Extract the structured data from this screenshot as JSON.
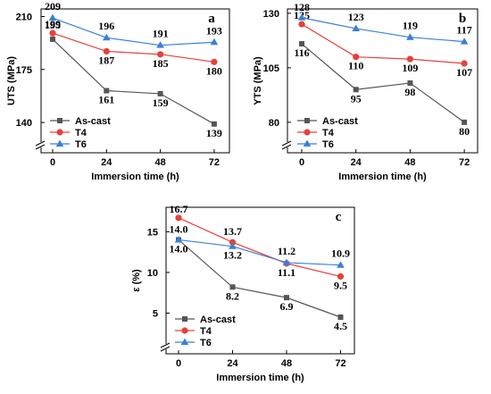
{
  "chart_data": [
    {
      "type": "line",
      "panel": "a",
      "x": [
        0,
        24,
        48,
        72
      ],
      "xticks": [
        "0",
        "24",
        "48",
        "72"
      ],
      "xlabel": "Immersion time (h)",
      "ylabel": "UTS (MPa)",
      "ylim": [
        120,
        215
      ],
      "yticks": [
        140,
        175,
        210
      ],
      "axis_break": true,
      "legend": "bottom-left",
      "series": [
        {
          "name": "As-cast",
          "values": [
            195,
            161,
            159,
            139
          ],
          "labels": [
            "195",
            "161",
            "159",
            "139"
          ],
          "color": "#555555",
          "marker": "square"
        },
        {
          "name": "T4",
          "values": [
            199,
            187,
            185,
            180
          ],
          "labels": [
            "199",
            "187",
            "185",
            "180"
          ],
          "color": "#e8403a",
          "marker": "circle"
        },
        {
          "name": "T6",
          "values": [
            209,
            196,
            191,
            193
          ],
          "labels": [
            "209",
            "196",
            "191",
            "193"
          ],
          "color": "#3a7fd9",
          "marker": "triangle"
        }
      ]
    },
    {
      "type": "line",
      "panel": "b",
      "x": [
        0,
        24,
        48,
        72
      ],
      "xticks": [
        "0",
        "24",
        "48",
        "72"
      ],
      "xlabel": "Immersion time (h)",
      "ylabel": "YTS (MPa)",
      "ylim": [
        66,
        132
      ],
      "yticks": [
        80,
        105,
        130
      ],
      "axis_break": true,
      "legend": "bottom-left",
      "series": [
        {
          "name": "As-cast",
          "values": [
            116,
            95,
            98,
            80
          ],
          "labels": [
            "116",
            "95",
            "98",
            "80"
          ],
          "color": "#555555",
          "marker": "square"
        },
        {
          "name": "T4",
          "values": [
            125,
            110,
            109,
            107
          ],
          "labels": [
            "125",
            "110",
            "109",
            "107"
          ],
          "color": "#e8403a",
          "marker": "circle"
        },
        {
          "name": "T6",
          "values": [
            128,
            123,
            119,
            117
          ],
          "labels": [
            "128",
            "123",
            "119",
            "117"
          ],
          "color": "#3a7fd9",
          "marker": "triangle"
        }
      ]
    },
    {
      "type": "line",
      "panel": "c",
      "x": [
        0,
        24,
        48,
        72
      ],
      "xticks": [
        "0",
        "24",
        "48",
        "72"
      ],
      "xlabel": "Immersion time (h)",
      "ylabel": "ε (%)",
      "ylim": [
        0,
        18
      ],
      "yticks": [
        5,
        10,
        15
      ],
      "axis_break": true,
      "legend": "bottom-left",
      "series": [
        {
          "name": "As-cast",
          "values": [
            14.0,
            8.2,
            6.9,
            4.5
          ],
          "labels": [
            "14.0",
            "8.2",
            "6.9",
            "4.5"
          ],
          "color": "#555555",
          "marker": "square"
        },
        {
          "name": "T4",
          "values": [
            16.7,
            13.7,
            11.1,
            9.5
          ],
          "labels": [
            "16.7",
            "13.7",
            "11.1",
            "9.5"
          ],
          "color": "#e8403a",
          "marker": "circle"
        },
        {
          "name": "T6",
          "values": [
            14.0,
            13.2,
            11.2,
            10.9
          ],
          "labels": [
            "14.0",
            "13.2",
            "11.2",
            "10.9"
          ],
          "color": "#3a7fd9",
          "marker": "triangle"
        }
      ]
    }
  ]
}
